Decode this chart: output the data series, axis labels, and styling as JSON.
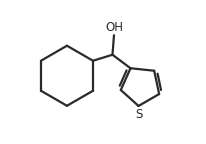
{
  "background_color": "#ffffff",
  "line_color": "#2a2a2a",
  "line_width": 1.6,
  "text_color": "#2a2a2a",
  "oh_label": "OH",
  "s_label": "S",
  "oh_fontsize": 8.5,
  "s_fontsize": 8.5,
  "figsize": [
    2.06,
    1.44
  ],
  "dpi": 100,
  "xlim": [
    0.0,
    1.05
  ],
  "ylim": [
    0.05,
    1.0
  ]
}
